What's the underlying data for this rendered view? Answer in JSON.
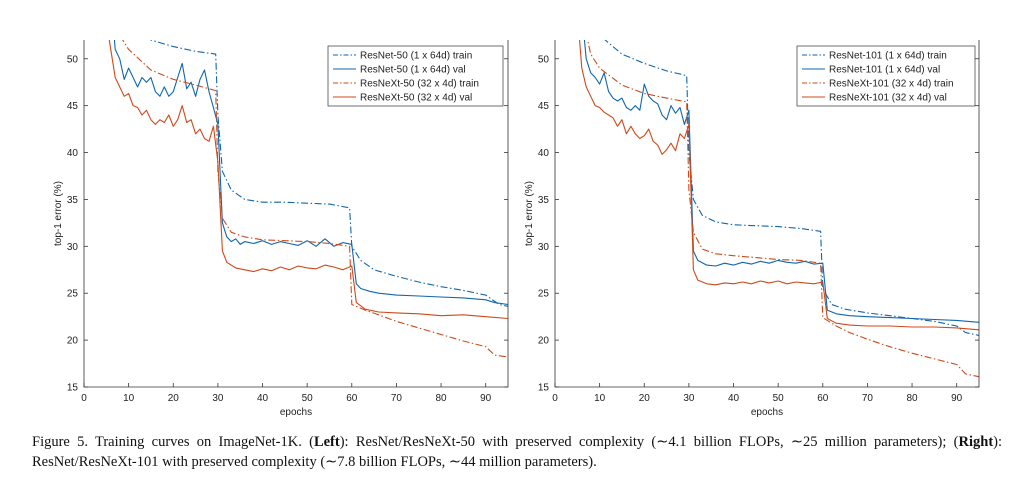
{
  "colors": {
    "blue": "#0f66ad",
    "red": "#cc4a1a"
  },
  "chart_data": [
    {
      "type": "line",
      "xlabel": "epochs",
      "ylabel": "top-1 error (%)",
      "xlim": [
        0,
        95
      ],
      "ylim": [
        15,
        52
      ],
      "xticks": [
        0,
        10,
        20,
        30,
        40,
        50,
        60,
        70,
        80,
        90
      ],
      "yticks": [
        15,
        20,
        25,
        30,
        35,
        40,
        45,
        50
      ],
      "grid": false,
      "legend_position": "top-right",
      "series": [
        {
          "name": "ResNet-50 (1 x 64d) train",
          "color": "blue",
          "style": "dashdot",
          "x": [
            6,
            10,
            15,
            20,
            25,
            29.5,
            30,
            31,
            33,
            36,
            40,
            45,
            50,
            55,
            59.5,
            60,
            62,
            65,
            70,
            75,
            80,
            85,
            90,
            93,
            95
          ],
          "y": [
            60,
            54.5,
            52,
            51.3,
            50.8,
            50.5,
            44,
            38,
            36,
            35,
            34.7,
            34.7,
            34.6,
            34.5,
            34.1,
            30,
            28.5,
            27.5,
            26.8,
            26.2,
            25.7,
            25.3,
            24.8,
            23.8,
            23.6
          ]
        },
        {
          "name": "ResNet-50 (1 x 64d) val",
          "color": "blue",
          "style": "solid",
          "x": [
            6,
            7,
            8,
            9,
            10,
            11,
            12,
            13,
            14,
            15,
            16,
            17,
            18,
            19,
            20,
            21,
            22,
            23,
            24,
            25,
            26,
            27,
            28,
            29,
            30,
            31,
            32,
            33,
            34,
            35,
            36,
            38,
            40,
            42,
            44,
            46,
            48,
            50,
            52,
            54,
            56,
            58,
            60,
            61,
            62,
            64,
            66,
            70,
            75,
            80,
            85,
            90,
            92,
            95
          ],
          "y": [
            57,
            51,
            50,
            47.8,
            49,
            48,
            47,
            48,
            47.5,
            48,
            46.5,
            46,
            47,
            46,
            46.5,
            48,
            49.5,
            46.8,
            47.5,
            46,
            47.8,
            48.8,
            46.5,
            44.8,
            43,
            32.5,
            31,
            30.5,
            30.8,
            30.2,
            30.5,
            30.3,
            30.6,
            30.2,
            30.5,
            30.3,
            30.1,
            30.6,
            30.0,
            30.8,
            30.0,
            30.4,
            30.2,
            26,
            25.5,
            25.2,
            25,
            24.8,
            24.7,
            24.6,
            24.5,
            24.3,
            24.0,
            23.8
          ]
        },
        {
          "name": "ResNeXt-50 (32 x 4d) train",
          "color": "red",
          "style": "dashdot",
          "x": [
            5,
            8,
            10,
            15,
            20,
            25,
            29.5,
            30,
            31,
            33,
            36,
            40,
            45,
            50,
            55,
            59.5,
            60,
            63,
            66,
            70,
            75,
            80,
            85,
            90,
            92,
            95
          ],
          "y": [
            58,
            52.5,
            51,
            48.8,
            47.8,
            47.2,
            46.6,
            38,
            33,
            31.5,
            31,
            30.7,
            30.6,
            30.5,
            30.3,
            30.0,
            23.8,
            23.2,
            22.7,
            22.0,
            21.3,
            20.6,
            19.9,
            19.3,
            18.4,
            18.2
          ]
        },
        {
          "name": "ResNeXt-50 (32 x 4d) val",
          "color": "red",
          "style": "solid",
          "x": [
            5,
            7,
            8,
            9,
            10,
            11,
            12,
            13,
            14,
            15,
            16,
            17,
            18,
            19,
            20,
            21,
            22,
            23,
            24,
            25,
            26,
            27,
            28,
            29,
            30,
            31,
            32,
            34,
            36,
            38,
            40,
            42,
            44,
            46,
            48,
            50,
            52,
            54,
            56,
            58,
            60,
            61,
            63,
            66,
            70,
            75,
            80,
            85,
            90,
            95
          ],
          "y": [
            54,
            48,
            47,
            46,
            46.3,
            45,
            44.8,
            44,
            44.5,
            43.5,
            43,
            43.5,
            43.2,
            44,
            42.8,
            43.5,
            45,
            43.2,
            43.5,
            42,
            42.5,
            41.5,
            41.2,
            42.8,
            39,
            29.5,
            28.3,
            27.7,
            27.5,
            27.3,
            27.6,
            27.4,
            27.8,
            27.5,
            27.9,
            27.7,
            27.6,
            28.0,
            27.8,
            27.5,
            27.9,
            24,
            23.3,
            23.0,
            22.9,
            22.8,
            22.6,
            22.7,
            22.5,
            22.3
          ]
        }
      ]
    },
    {
      "type": "line",
      "xlabel": "epochs",
      "ylabel": "top-1 error (%)",
      "xlim": [
        0,
        95
      ],
      "ylim": [
        15,
        52
      ],
      "xticks": [
        0,
        10,
        20,
        30,
        40,
        50,
        60,
        70,
        80,
        90
      ],
      "yticks": [
        15,
        20,
        25,
        30,
        35,
        40,
        45,
        50
      ],
      "grid": false,
      "legend_position": "top-right",
      "series": [
        {
          "name": "ResNet-101 (1 x 64d) train",
          "color": "blue",
          "style": "dashdot",
          "x": [
            6,
            10,
            15,
            20,
            25,
            29.5,
            30,
            31,
            33,
            36,
            40,
            45,
            50,
            55,
            59.5,
            60,
            62,
            65,
            70,
            75,
            80,
            85,
            90,
            92,
            95
          ],
          "y": [
            59,
            52.5,
            50.5,
            49.5,
            48.7,
            48.2,
            40,
            35,
            33.3,
            32.6,
            32.3,
            32.2,
            32.1,
            31.9,
            31.6,
            25.5,
            23.8,
            23.3,
            22.9,
            22.6,
            22.3,
            22.0,
            21.5,
            20.8,
            20.5
          ]
        },
        {
          "name": "ResNet-101 (1 x 64d) val",
          "color": "blue",
          "style": "solid",
          "x": [
            6,
            7,
            8,
            9,
            10,
            11,
            12,
            13,
            14,
            15,
            16,
            17,
            18,
            19,
            20,
            21,
            22,
            23,
            24,
            25,
            26,
            27,
            28,
            29,
            30,
            31,
            32,
            34,
            36,
            38,
            40,
            42,
            44,
            46,
            48,
            50,
            52,
            54,
            56,
            58,
            60,
            61,
            63,
            66,
            70,
            75,
            80,
            85,
            90,
            95
          ],
          "y": [
            55,
            50,
            48.5,
            48,
            47.3,
            48.5,
            46.5,
            45.8,
            45.5,
            45.8,
            44.8,
            44.5,
            45,
            44.5,
            47.3,
            46,
            45.5,
            45.2,
            44,
            43.5,
            45,
            44.2,
            44.8,
            43,
            44.5,
            29.5,
            28.5,
            28.0,
            27.9,
            28.2,
            28.0,
            28.3,
            28.1,
            28.4,
            28.2,
            28.5,
            28.3,
            28.2,
            28.4,
            28.1,
            28.2,
            23.2,
            22.8,
            22.6,
            22.5,
            22.4,
            22.3,
            22.2,
            22.1,
            21.9
          ]
        },
        {
          "name": "ResNeXt-101 (32 x 4d) train",
          "color": "red",
          "style": "dashdot",
          "x": [
            5,
            8,
            10,
            15,
            20,
            25,
            29.5,
            30,
            31,
            33,
            36,
            40,
            45,
            50,
            55,
            59.5,
            60,
            63,
            66,
            70,
            75,
            80,
            85,
            90,
            92,
            95
          ],
          "y": [
            57,
            50.5,
            49,
            47.2,
            46.3,
            45.8,
            45.4,
            36,
            31.5,
            29.7,
            29.2,
            29.0,
            28.8,
            28.6,
            28.5,
            28.2,
            22.4,
            21.5,
            20.8,
            20.1,
            19.3,
            18.6,
            18.0,
            17.4,
            16.4,
            16.1
          ]
        },
        {
          "name": "ResNeXt-101 (32 x 4d) val",
          "color": "red",
          "style": "solid",
          "x": [
            5,
            6,
            7,
            8,
            9,
            10,
            11,
            12,
            13,
            14,
            15,
            16,
            17,
            18,
            19,
            20,
            21,
            22,
            23,
            24,
            25,
            26,
            27,
            28,
            29,
            30,
            31,
            32,
            34,
            36,
            38,
            40,
            42,
            44,
            46,
            48,
            50,
            52,
            54,
            56,
            58,
            60,
            61,
            63,
            66,
            70,
            75,
            80,
            85,
            90,
            95
          ],
          "y": [
            55,
            49,
            47,
            46,
            45,
            44.8,
            44.3,
            44,
            43.7,
            42.8,
            43.5,
            42,
            42.8,
            42,
            41.5,
            41.8,
            42.5,
            41.2,
            40.8,
            39.8,
            40.3,
            41,
            40.2,
            42,
            41.5,
            43,
            27.5,
            26.4,
            26.0,
            25.9,
            26.1,
            26.0,
            26.2,
            26.0,
            26.3,
            26.1,
            26.3,
            26.0,
            26.2,
            26.1,
            26.0,
            26.2,
            22.3,
            21.8,
            21.6,
            21.5,
            21.5,
            21.4,
            21.4,
            21.3,
            21.1
          ]
        }
      ]
    }
  ],
  "caption": {
    "prefix": "Figure 5. Training curves on ImageNet-1K. (",
    "left_bold": "Left",
    "left_text": "): ResNet/ResNeXt-50 with preserved complexity (∼4.1 billion FLOPs, ∼25 million parameters); (",
    "right_bold": "Right",
    "right_text": "): ResNet/ResNeXt-101 with preserved complexity (∼7.8 billion FLOPs, ∼44 million parameters)."
  }
}
